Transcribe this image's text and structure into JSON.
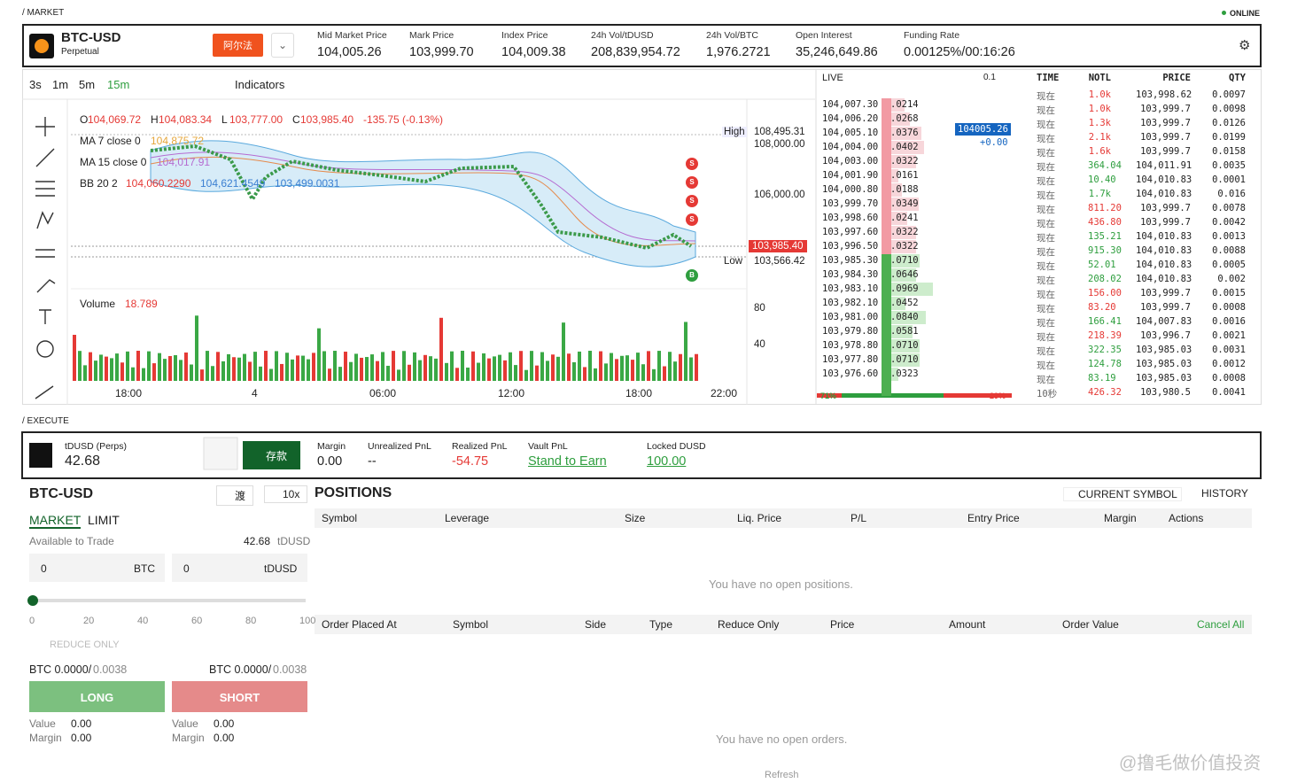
{
  "header": {
    "section": "/ MARKET",
    "status": "ONLINE",
    "symbol": "BTC-USD",
    "subtitle": "Perpetual",
    "badge": "阿尔法",
    "stats": [
      {
        "label": "Mid Market Price",
        "value": "104,005.26"
      },
      {
        "label": "Mark Price",
        "value": "103,999.70"
      },
      {
        "label": "Index Price",
        "value": "104,009.38"
      },
      {
        "label": "24h Vol/tDUSD",
        "value": "208,839,954.72"
      },
      {
        "label": "24h Vol/BTC",
        "value": "1,976.2721"
      },
      {
        "label": "Open Interest",
        "value": "35,246,649.86"
      },
      {
        "label": "Funding Rate",
        "value": "0.00125%/00:16:26"
      }
    ]
  },
  "toolbar": {
    "intervals": [
      "3s",
      "1m",
      "5m",
      "15m"
    ],
    "indicators": "Indicators"
  },
  "chart": {
    "ohlc": [
      {
        "k": "O",
        "v": "104,069.72"
      },
      {
        "k": "H",
        "v": "104,083.34"
      },
      {
        "k": "L",
        "v": "103,777.00"
      },
      {
        "k": "C",
        "v": "103,985.40"
      }
    ],
    "change": "-135.75 (-0.13%)",
    "legend": [
      {
        "label": "MA 7 close 0",
        "values": [
          "104,875.72"
        ]
      },
      {
        "label": "MA 15 close 0",
        "values": [
          "104,017.91"
        ]
      },
      {
        "label": "BB 20 2",
        "values": [
          "104,060.2290",
          "104,621.4549",
          "103,499.0031"
        ]
      }
    ],
    "high_label": "High",
    "high": "108,495.31",
    "low_label": "Low",
    "low": "103,566.42",
    "last": "103,985.40",
    "price_ticks": [
      "108,000.00",
      "106,000.00"
    ],
    "volume_label": "Volume",
    "volume": "18.789",
    "volume_ticks": [
      "80",
      "40"
    ],
    "time_ticks": [
      "18:00",
      "4",
      "06:00",
      "12:00",
      "18:00",
      "22:00"
    ],
    "markers": [
      "S",
      "S",
      "S",
      "S",
      "B"
    ]
  },
  "orderbook": {
    "title": "LIVE",
    "step": "0.1",
    "mid": "104005.26",
    "mid_change": "+0.00",
    "buy_pct": "71%",
    "sell_pct": "29%",
    "asks": [
      [
        "104,007.30",
        ".0214"
      ],
      [
        "104,006.20",
        ".0268"
      ],
      [
        "104,005.10",
        ".0376"
      ],
      [
        "104,004.00",
        ".0402"
      ],
      [
        "104,003.00",
        ".0322"
      ],
      [
        "104,001.90",
        ".0161"
      ],
      [
        "104,000.80",
        ".0188"
      ],
      [
        "103,999.70",
        ".0349"
      ],
      [
        "103,998.60",
        ".0241"
      ],
      [
        "103,997.60",
        ".0322"
      ],
      [
        "103,996.50",
        ".0322"
      ]
    ],
    "bids": [
      [
        "103,985.30",
        ".0710"
      ],
      [
        "103,984.30",
        ".0646"
      ],
      [
        "103,983.10",
        ".0969"
      ],
      [
        "103,982.10",
        ".0452"
      ],
      [
        "103,981.00",
        ".0840"
      ],
      [
        "103,979.80",
        ".0581"
      ],
      [
        "103,978.80",
        ".0710"
      ],
      [
        "103,977.80",
        ".0710"
      ],
      [
        "103,976.60",
        ".0323"
      ]
    ]
  },
  "trades": {
    "columns": [
      "TIME",
      "NOTL",
      "PRICE",
      "QTY"
    ],
    "rows": [
      [
        "现在",
        "1.0k",
        "103,998.62",
        "0.0097",
        "#e53935"
      ],
      [
        "现在",
        "1.0k",
        "103,999.7",
        "0.0098",
        "#e53935"
      ],
      [
        "现在",
        "1.3k",
        "103,999.7",
        "0.0126",
        "#e53935"
      ],
      [
        "现在",
        "2.1k",
        "103,999.7",
        "0.0199",
        "#e53935"
      ],
      [
        "现在",
        "1.6k",
        "103,999.7",
        "0.0158",
        "#e53935"
      ],
      [
        "现在",
        "364.04",
        "104,011.91",
        "0.0035",
        "#2e9e3e"
      ],
      [
        "现在",
        "10.40",
        "104,010.83",
        "0.0001",
        "#2e9e3e"
      ],
      [
        "现在",
        "1.7k",
        "104,010.83",
        "0.016",
        "#2e9e3e"
      ],
      [
        "现在",
        "811.20",
        "103,999.7",
        "0.0078",
        "#e53935"
      ],
      [
        "现在",
        "436.80",
        "103,999.7",
        "0.0042",
        "#e53935"
      ],
      [
        "现在",
        "135.21",
        "104,010.83",
        "0.0013",
        "#2e9e3e"
      ],
      [
        "现在",
        "915.30",
        "104,010.83",
        "0.0088",
        "#2e9e3e"
      ],
      [
        "现在",
        "52.01",
        "104,010.83",
        "0.0005",
        "#2e9e3e"
      ],
      [
        "现在",
        "208.02",
        "104,010.83",
        "0.002",
        "#2e9e3e"
      ],
      [
        "现在",
        "156.00",
        "103,999.7",
        "0.0015",
        "#e53935"
      ],
      [
        "现在",
        "83.20",
        "103,999.7",
        "0.0008",
        "#e53935"
      ],
      [
        "现在",
        "166.41",
        "104,007.83",
        "0.0016",
        "#2e9e3e"
      ],
      [
        "现在",
        "218.39",
        "103,996.7",
        "0.0021",
        "#e53935"
      ],
      [
        "现在",
        "322.35",
        "103,985.03",
        "0.0031",
        "#2e9e3e"
      ],
      [
        "现在",
        "124.78",
        "103,985.03",
        "0.0012",
        "#2e9e3e"
      ],
      [
        "现在",
        "83.19",
        "103,985.03",
        "0.0008",
        "#2e9e3e"
      ],
      [
        "10秒",
        "426.32",
        "103,980.5",
        "0.0041",
        "#e53935"
      ]
    ]
  },
  "execute": {
    "section": "/ EXECUTE",
    "account": "tDUSD (Perps)",
    "balance": "42.68",
    "deposit": "存款",
    "metrics": [
      {
        "label": "Margin",
        "value": "0.00"
      },
      {
        "label": "Unrealized PnL",
        "value": "--"
      },
      {
        "label": "Realized PnL",
        "value": "-54.75"
      },
      {
        "label": "Vault PnL",
        "value": "Stand to Earn"
      },
      {
        "label": "Locked DUSD",
        "value": "100.00"
      }
    ]
  },
  "order": {
    "symbol": "BTC-USD",
    "mode": "渡",
    "leverage": "10x",
    "tabs": [
      "MARKET",
      "LIMIT"
    ],
    "available_label": "Available to Trade",
    "available": "42.68",
    "available_unit": "tDUSD",
    "inputs": [
      {
        "value": "0",
        "unit": "BTC"
      },
      {
        "value": "0",
        "unit": "tDUSD"
      }
    ],
    "slider": [
      "0",
      "20",
      "40",
      "60",
      "80",
      "100"
    ],
    "reduce_only": "REDUCE ONLY",
    "sides": [
      {
        "cap_prefix": "BTC 0.0000/",
        "cap": "0.0038",
        "button": "LONG",
        "value_label": "Value",
        "value": "0.00",
        "margin_label": "Margin",
        "margin": "0.00"
      },
      {
        "cap_prefix": "BTC 0.0000/",
        "cap": "0.0038",
        "button": "SHORT",
        "value_label": "Value",
        "value": "0.00",
        "margin_label": "Margin",
        "margin": "0.00"
      }
    ]
  },
  "positions": {
    "title": "POSITIONS",
    "filter": "CURRENT SYMBOL",
    "history": "HISTORY",
    "columns": [
      "Symbol",
      "Leverage",
      "Size",
      "Liq. Price",
      "P/L",
      "Entry Price",
      "Margin"
    ],
    "actions": "Actions",
    "empty": "You have no open positions.",
    "order_columns": [
      "Order Placed At",
      "Symbol",
      "Side",
      "Type",
      "Reduce Only",
      "Price",
      "Amount",
      "Order Value"
    ],
    "cancel_all": "Cancel All",
    "orders_empty": "You have no open orders.",
    "refresh": "Refresh"
  },
  "watermark": "@撸毛做价值投资"
}
